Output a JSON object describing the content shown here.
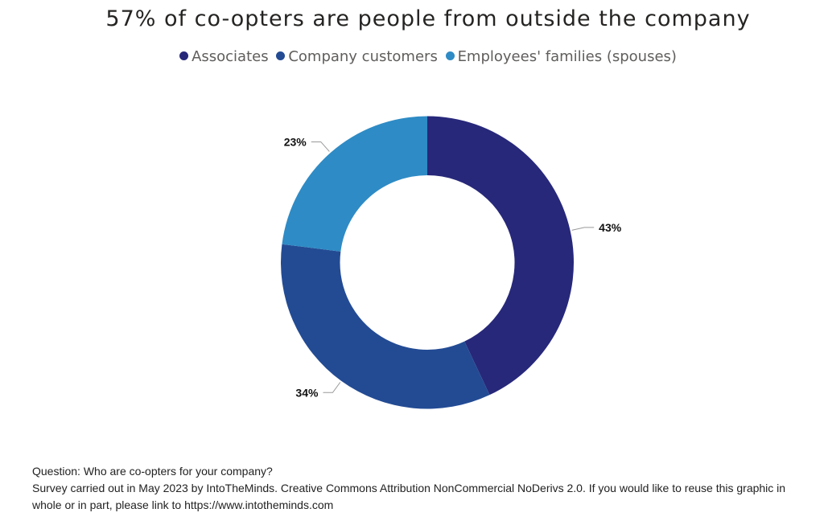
{
  "chart_data": {
    "type": "pie",
    "variant": "donut",
    "title": "57% of co-opters are people from outside the company",
    "legend_position": "top",
    "categories": [
      "Associates",
      "Company customers",
      "Employees' families (spouses)"
    ],
    "values": [
      43,
      34,
      23
    ],
    "data_labels": [
      "43%",
      "34%",
      "23%"
    ],
    "colors": [
      "#27287a",
      "#234b94",
      "#2e8bc5"
    ]
  },
  "footer": {
    "question": "Question: Who are co-opters for your company?",
    "source": "Survey carried out in May 2023 by IntoTheMinds. Creative Commons Attribution NonCommercial NoDerivs 2.0. If you would like to reuse this graphic in whole or in part, please link to https://www.intotheminds.com"
  }
}
